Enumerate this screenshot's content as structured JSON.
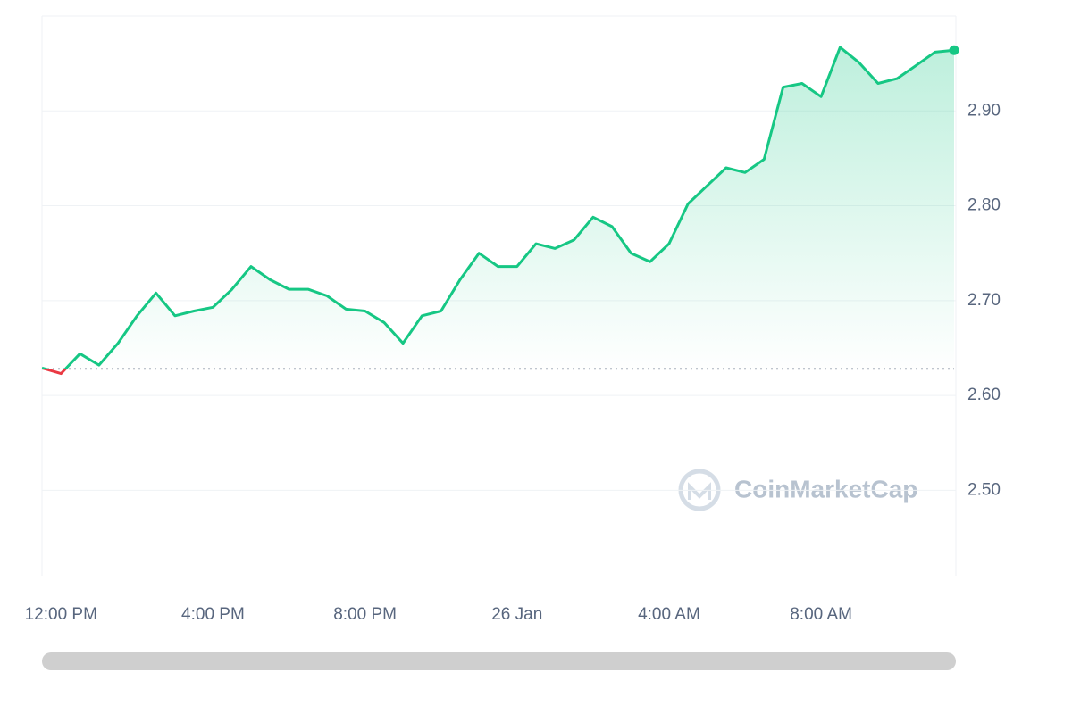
{
  "chart_data": {
    "type": "line",
    "watermark": "CoinMarketCap",
    "categories": [
      null,
      "12:00 PM",
      null,
      null,
      null,
      null,
      null,
      null,
      null,
      "4:00 PM",
      null,
      null,
      null,
      null,
      null,
      null,
      null,
      "8:00 PM",
      null,
      null,
      null,
      null,
      null,
      null,
      null,
      "26 Jan",
      null,
      null,
      null,
      null,
      null,
      null,
      null,
      "4:00 AM",
      null,
      null,
      null,
      null,
      null,
      null,
      null,
      "8:00 AM",
      null,
      null,
      null,
      null,
      null,
      null,
      null
    ],
    "series": [
      {
        "color": "#16c784",
        "below_color": "#ea3943",
        "values": [
          2.629,
          2.623,
          2.644,
          2.632,
          2.655,
          2.684,
          2.708,
          2.684,
          2.689,
          2.693,
          2.712,
          2.736,
          2.722,
          2.712,
          2.712,
          2.705,
          2.691,
          2.689,
          2.677,
          2.655,
          2.684,
          2.689,
          2.722,
          2.75,
          2.736,
          2.736,
          2.76,
          2.755,
          2.764,
          2.788,
          2.778,
          2.75,
          2.741,
          2.76,
          2.802,
          2.821,
          2.84,
          2.835,
          2.849,
          2.925,
          2.929,
          2.915,
          2.967,
          2.951,
          2.929,
          2.934,
          2.948,
          2.962,
          2.964
        ]
      }
    ],
    "baseline": 2.628,
    "ylim": [
      2.41,
      3.0
    ],
    "yticks": [
      {
        "value": 2.5,
        "label": "2.50"
      },
      {
        "value": 2.6,
        "label": "2.60"
      },
      {
        "value": 2.7,
        "label": "2.70"
      },
      {
        "value": 2.8,
        "label": "2.80"
      },
      {
        "value": 2.9,
        "label": "2.90"
      }
    ],
    "grid": true
  }
}
